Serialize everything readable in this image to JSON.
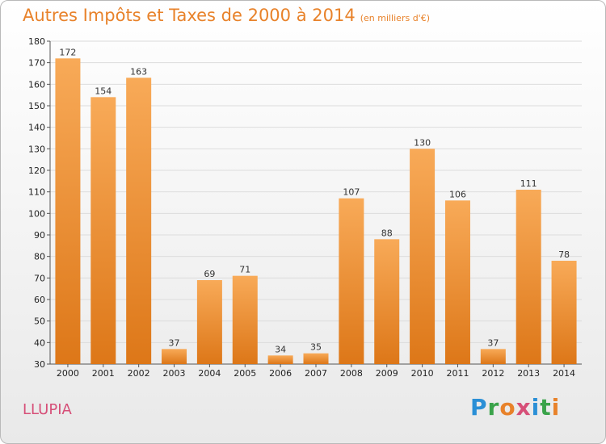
{
  "header": {
    "title": "Autres Impôts et Taxes de 2000 à 2014",
    "subtitle": "(en milliers d'€)"
  },
  "commune": "LLUPIA",
  "logo": {
    "text": "Proxiti",
    "colors": [
      "#2a8fd6",
      "#3aa34a",
      "#e8822a",
      "#d64f78",
      "#2a8fd6",
      "#3aa34a",
      "#e8822a"
    ]
  },
  "colors": {
    "bar_light": "#f8aa58",
    "bar_dark": "#dd7718",
    "title": "#e8822a",
    "commune": "#d64f78"
  },
  "chart_data": {
    "type": "bar",
    "categories": [
      "2000",
      "2001",
      "2002",
      "2003",
      "2004",
      "2005",
      "2006",
      "2007",
      "2008",
      "2009",
      "2010",
      "2011",
      "2012",
      "2013",
      "2014"
    ],
    "values": [
      172,
      154,
      163,
      37,
      69,
      71,
      34,
      35,
      107,
      88,
      130,
      106,
      37,
      111,
      78
    ],
    "title": "Autres Impôts et Taxes de 2000 à 2014",
    "subtitle": "(en milliers d'€)",
    "ylim": [
      30,
      180
    ],
    "yticks": [
      30,
      40,
      50,
      60,
      70,
      80,
      90,
      100,
      110,
      120,
      130,
      140,
      150,
      160,
      170,
      180
    ],
    "grid": true,
    "data_labels": true
  }
}
